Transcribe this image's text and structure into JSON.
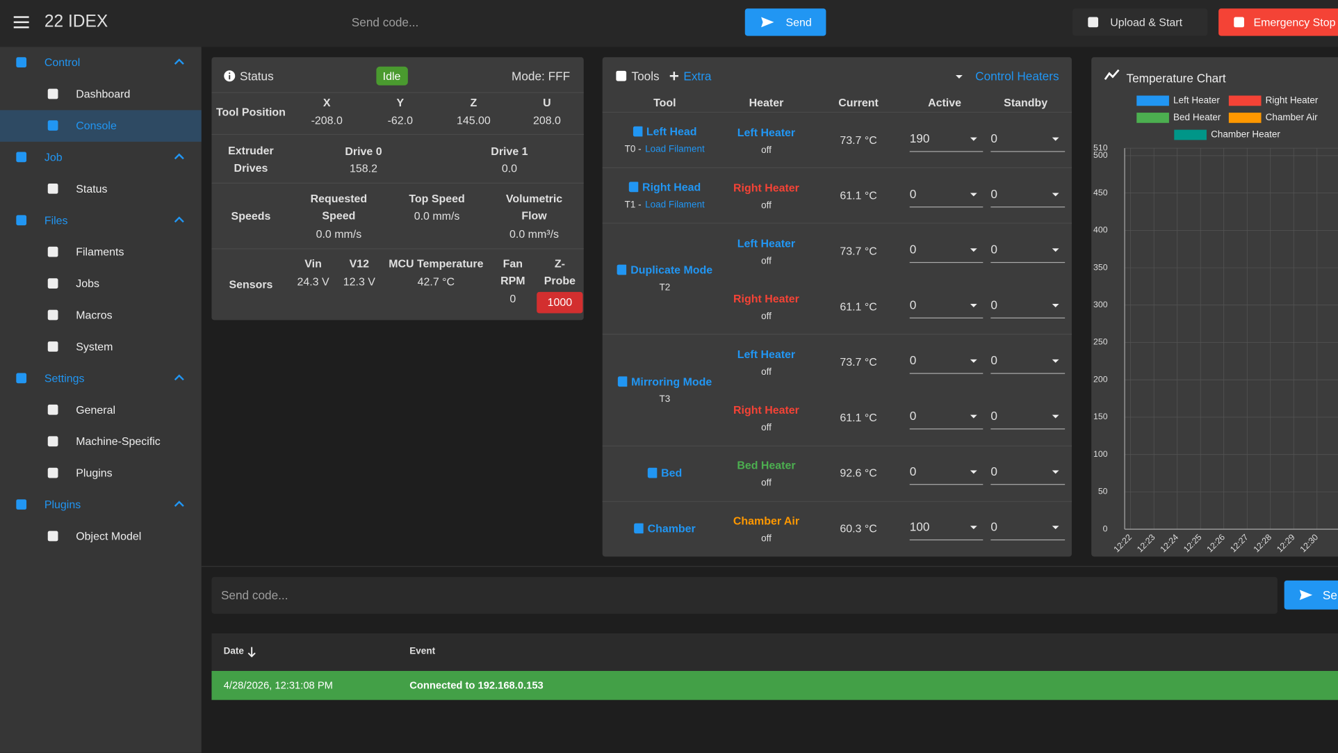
{
  "app_bar": {
    "title": "22 IDEX",
    "code_placeholder": "Send code...",
    "send": "Send",
    "upload": "Upload & Start",
    "emergency": "Emergency Stop"
  },
  "sidebar": {
    "sections": [
      {
        "label": "Control",
        "items": [
          "Dashboard",
          "Console"
        ]
      },
      {
        "label": "Job",
        "items": [
          "Status"
        ]
      },
      {
        "label": "Files",
        "items": [
          "Filaments",
          "Jobs",
          "Macros",
          "System"
        ]
      },
      {
        "label": "Settings",
        "items": [
          "General",
          "Machine-Specific",
          "Plugins"
        ]
      },
      {
        "label": "Plugins",
        "items": [
          "Object Model"
        ]
      }
    ]
  },
  "status": {
    "title": "Status",
    "state": "Idle",
    "mode": "Mode: FFF",
    "tool_position": {
      "label": "Tool Position",
      "axes": [
        "X",
        "Y",
        "Z",
        "U"
      ],
      "values": [
        "-208.0",
        "-62.0",
        "145.00",
        "208.0"
      ]
    },
    "extruder": {
      "label": "Extruder Drives",
      "drives": [
        "Drive 0",
        "Drive 1"
      ],
      "values": [
        "158.2",
        "0.0"
      ]
    },
    "speeds": {
      "label": "Speeds",
      "names": [
        "Requested Speed",
        "Top Speed",
        "Volumetric Flow"
      ],
      "values": [
        "0.0 mm/s",
        "0.0 mm/s",
        "0.0 mm³/s"
      ]
    },
    "sensors": {
      "label": "Sensors",
      "names": [
        "Vin",
        "V12",
        "MCU Temperature",
        "Fan RPM",
        "Z-Probe"
      ],
      "values": [
        "24.3 V",
        "12.3 V",
        "42.7 °C",
        "0",
        "1000"
      ]
    }
  },
  "tools": {
    "title": "Tools",
    "extra": "Extra",
    "control": "Control Heaters",
    "columns": [
      "Tool",
      "Heater",
      "Current",
      "Active",
      "Standby"
    ],
    "rows": [
      {
        "name": "Left Head",
        "id": "T0 -",
        "link": "Load Filament",
        "heaters": [
          {
            "name": "Left Heater",
            "color": "#2196f3",
            "state": "off",
            "current": "73.7 °C",
            "active": "190",
            "standby": "0"
          }
        ]
      },
      {
        "name": "Right Head",
        "id": "T1 -",
        "link": "Load Filament",
        "heaters": [
          {
            "name": "Right Heater",
            "color": "#f44336",
            "state": "off",
            "current": "61.1 °C",
            "active": "0",
            "standby": "0"
          }
        ]
      },
      {
        "name": "Duplicate Mode",
        "id": "T2",
        "heaters": [
          {
            "name": "Left Heater",
            "color": "#2196f3",
            "state": "off",
            "current": "73.7 °C",
            "active": "0",
            "standby": "0"
          },
          {
            "name": "Right Heater",
            "color": "#f44336",
            "state": "off",
            "current": "61.1 °C",
            "active": "0",
            "standby": "0"
          }
        ]
      },
      {
        "name": "Mirroring Mode",
        "id": "T3",
        "heaters": [
          {
            "name": "Left Heater",
            "color": "#2196f3",
            "state": "off",
            "current": "73.7 °C",
            "active": "0",
            "standby": "0"
          },
          {
            "name": "Right Heater",
            "color": "#f44336",
            "state": "off",
            "current": "61.1 °C",
            "active": "0",
            "standby": "0"
          }
        ]
      },
      {
        "name": "Bed",
        "heaters": [
          {
            "name": "Bed Heater",
            "color": "#4caf50",
            "state": "off",
            "current": "92.6 °C",
            "active": "0",
            "standby": "0"
          }
        ]
      },
      {
        "name": "Chamber",
        "heaters": [
          {
            "name": "Chamber Air",
            "color": "#ff9800",
            "state": "off",
            "current": "60.3 °C",
            "active": "100",
            "standby": "0"
          }
        ]
      }
    ]
  },
  "temperature_chart": {
    "title": "Temperature Chart",
    "legend": [
      {
        "name": "Left Heater",
        "color": "#2196f3"
      },
      {
        "name": "Right Heater",
        "color": "#f44336"
      },
      {
        "name": "Bed Heater",
        "color": "#4caf50"
      },
      {
        "name": "Chamber Air",
        "color": "#ff9800"
      },
      {
        "name": "Chamber Heater",
        "color": "#009688"
      }
    ],
    "ylim": [
      0,
      510
    ],
    "yticks": [
      0,
      50,
      100,
      150,
      200,
      250,
      300,
      350,
      400,
      450,
      500,
      510
    ],
    "x_labels": [
      "12:22",
      "12:23",
      "12:24",
      "12:25",
      "12:26",
      "12:27",
      "12:28",
      "12:29",
      "12:30"
    ]
  },
  "console": {
    "placeholder": "Send code...",
    "send": "Send",
    "columns": [
      "Date",
      "Event"
    ],
    "rows": [
      [
        "4/28/2026, 12:31:08 PM",
        "Connected to 192.168.0.153"
      ]
    ]
  }
}
